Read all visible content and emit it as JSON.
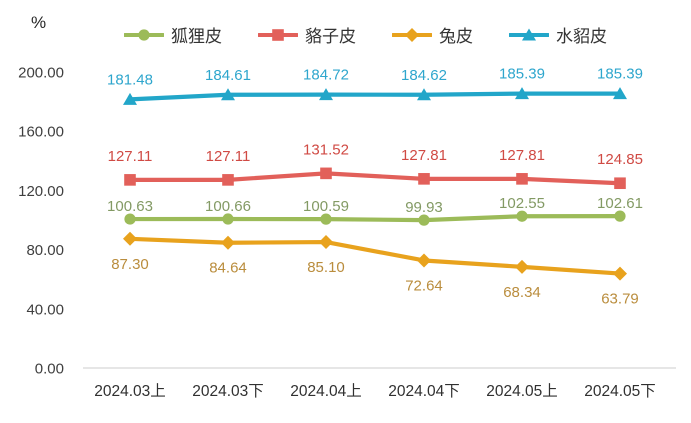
{
  "chart_data": {
    "type": "line",
    "title": "",
    "xlabel": "",
    "ylabel": "%",
    "ylim": [
      0,
      200
    ],
    "y_ticks": [
      200,
      160,
      120,
      80,
      40,
      0
    ],
    "grid": false,
    "legend_position": "top",
    "categories": [
      "2024.03上",
      "2024.03下",
      "2024.04上",
      "2024.04下",
      "2024.05上",
      "2024.05下"
    ],
    "series": [
      {
        "name": "狐狸皮",
        "marker": "circle",
        "color": "#9CBB59",
        "label_color": "#839A64",
        "label_side": "above",
        "values": [
          100.63,
          100.66,
          100.59,
          99.93,
          102.55,
          102.61
        ]
      },
      {
        "name": "貉子皮",
        "marker": "square",
        "color": "#E2605A",
        "label_color": "#D04A44",
        "label_side": "above",
        "values": [
          127.11,
          127.11,
          131.52,
          127.81,
          127.81,
          124.85
        ]
      },
      {
        "name": "兔皮",
        "marker": "diamond",
        "color": "#E8A21D",
        "label_color": "#BA8D3D",
        "label_side": "below",
        "values": [
          87.3,
          84.64,
          85.1,
          72.64,
          68.34,
          63.79
        ]
      },
      {
        "name": "水貂皮",
        "marker": "triangle",
        "color": "#22A6C9",
        "label_color": "#2EA6CD",
        "label_side": "above",
        "values": [
          181.48,
          184.61,
          184.72,
          184.62,
          185.39,
          185.39
        ]
      }
    ],
    "axis_color": "#D6D6D6",
    "tick_label_color": "#3F3F3F",
    "category_label_color": "#303030"
  }
}
